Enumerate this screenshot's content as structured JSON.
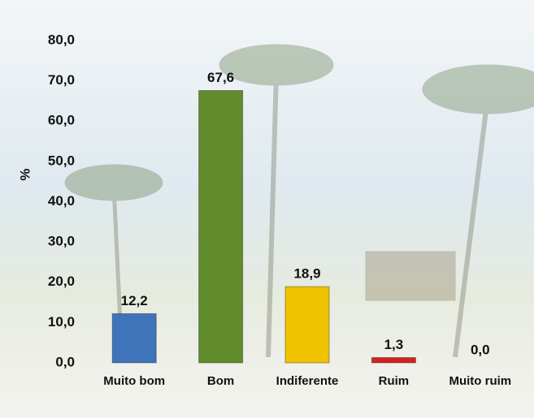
{
  "chart_data": {
    "type": "bar",
    "ylabel": "%",
    "categories": [
      "Muito bom",
      "Bom",
      "Indiferente",
      "Ruim",
      "Muito ruim"
    ],
    "values": [
      12.2,
      67.6,
      18.9,
      1.3,
      0.0
    ],
    "value_labels": [
      "12,2",
      "67,6",
      "18,9",
      "1,3",
      "0,0"
    ],
    "colors": [
      "#3f74bb",
      "#608c2c",
      "#f0c300",
      "#d42222",
      "#999999"
    ],
    "ylim": [
      0,
      80
    ],
    "yticks": [
      {
        "value": 0,
        "label": "0,0"
      },
      {
        "value": 10,
        "label": "10,0"
      },
      {
        "value": 20,
        "label": "20,0"
      },
      {
        "value": 30,
        "label": "30,0"
      },
      {
        "value": 40,
        "label": "40,0"
      },
      {
        "value": 50,
        "label": "50,0"
      },
      {
        "value": 60,
        "label": "60,0"
      },
      {
        "value": 70,
        "label": "70,0"
      },
      {
        "value": 80,
        "label": "80,0"
      }
    ],
    "grid": false
  }
}
